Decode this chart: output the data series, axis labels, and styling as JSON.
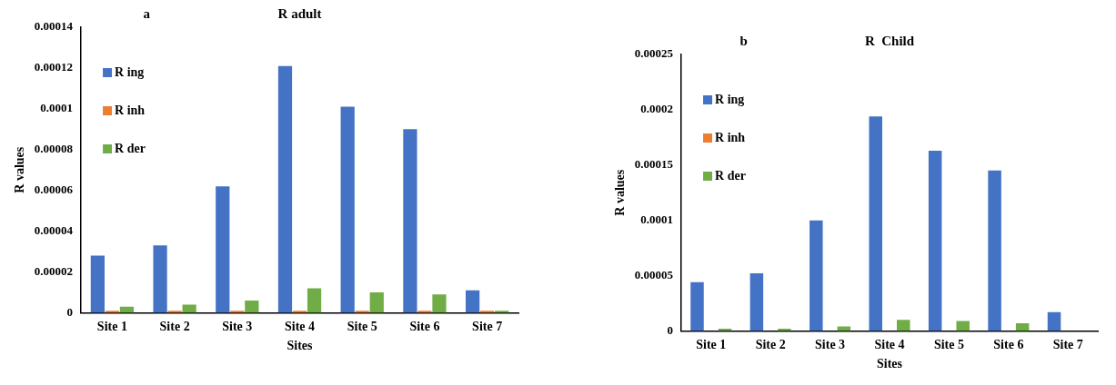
{
  "chart_data": [
    {
      "type": "bar",
      "title": "R adult",
      "annotations": [
        "a"
      ],
      "xlabel": "Sites",
      "ylabel": "R values",
      "categories": [
        "Site 1",
        "Site 2",
        "Site 3",
        "Site 4",
        "Site 5",
        "Site 6",
        "Site 7"
      ],
      "series": [
        {
          "name": "R ing",
          "color": "#4472c4",
          "values": [
            2.8e-05,
            3.3e-05,
            6.2e-05,
            0.000121,
            0.000101,
            9e-05,
            1.1e-05
          ]
        },
        {
          "name": "R inh",
          "color": "#ed7d31",
          "values": [
            1e-06,
            1e-06,
            1e-06,
            1e-06,
            1e-06,
            1e-06,
            1e-06
          ]
        },
        {
          "name": "R der",
          "color": "#70ad47",
          "values": [
            3e-06,
            4e-06,
            6e-06,
            1.2e-05,
            1e-05,
            9e-06,
            1e-06
          ]
        }
      ],
      "ylim": [
        0,
        0.00014
      ],
      "yticks": [
        0,
        {
          "value": 2e-05,
          "label": "0.00002"
        },
        {
          "value": 4e-05,
          "label": "0.00004"
        },
        {
          "value": 6e-05,
          "label": "0.00006"
        },
        {
          "value": 8e-05,
          "label": "0.00008"
        },
        0.0001,
        0.00012,
        0.00014
      ],
      "grid": false,
      "legend": "top left"
    },
    {
      "type": "bar",
      "title": "R  Child",
      "annotations": [
        "b"
      ],
      "xlabel": "Sites",
      "ylabel": "R values",
      "categories": [
        "Site 1",
        "Site 2",
        "Site 3",
        "Site 4",
        "Site 5",
        "Site 6",
        "Site 7"
      ],
      "series": [
        {
          "name": "R ing",
          "color": "#4472c4",
          "values": [
            4.4e-05,
            5.2e-05,
            0.0001,
            0.000194,
            0.000163,
            0.000145,
            1.7e-05
          ]
        },
        {
          "name": "R inh",
          "color": "#ed7d31",
          "values": [
            0,
            0,
            0,
            0,
            0,
            0,
            0
          ]
        },
        {
          "name": "R der",
          "color": "#70ad47",
          "values": [
            2e-06,
            2e-06,
            4e-06,
            1e-05,
            9e-06,
            7e-06,
            null
          ]
        }
      ],
      "ylim": [
        0,
        0.00025
      ],
      "yticks": [
        0,
        {
          "value": 5e-05,
          "label": "0.00005"
        },
        0.0001,
        0.00015,
        0.0002,
        0.00025
      ],
      "grid": false,
      "legend": "top left"
    }
  ]
}
